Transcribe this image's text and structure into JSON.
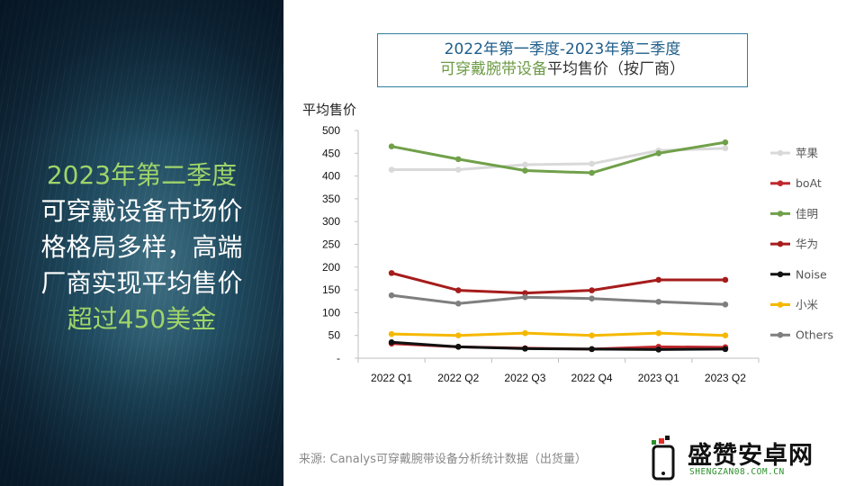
{
  "headline": {
    "line1": "2023年第二季度",
    "line2": "可穿戴设备市场价",
    "line3": "格格局多样，高端",
    "line4": "厂商实现平均售价",
    "line5": "超过450美金"
  },
  "source": "来源: Canalys可穿戴腕带设备分析统计数据（出货量）",
  "watermark": {
    "name": "盛赞安卓网",
    "url": "SHENGZAN08.COM.CN"
  },
  "colors": {
    "panel_dark": "#10293a",
    "headline_green": "#9fd46a",
    "title_blue": "#1f5e8a",
    "title_green": "#6d9b45",
    "title_border": "#2f7fa0"
  },
  "chart_data": {
    "type": "line",
    "title_line1": "2022年第一季度-2023年第二季度",
    "title_line2_green": "可穿戴腕带设备",
    "title_line2_rest": "平均售价（按厂商）",
    "ylabel": "平均售价",
    "xlabel": "",
    "categories": [
      "2022 Q1",
      "2022 Q2",
      "2022 Q3",
      "2022 Q4",
      "2023 Q1",
      "2023 Q2"
    ],
    "ylim": [
      0,
      500
    ],
    "yticks": [
      {
        "value": 0,
        "label": "-"
      },
      {
        "value": 50,
        "label": "50"
      },
      {
        "value": 100,
        "label": "100"
      },
      {
        "value": 150,
        "label": "150"
      },
      {
        "value": 200,
        "label": "200"
      },
      {
        "value": 250,
        "label": "250"
      },
      {
        "value": 300,
        "label": "300"
      },
      {
        "value": 350,
        "label": "350"
      },
      {
        "value": 400,
        "label": "400"
      },
      {
        "value": 450,
        "label": "450"
      },
      {
        "value": 500,
        "label": "500"
      }
    ],
    "grid": false,
    "legend_position": "right",
    "series": [
      {
        "name": "苹果",
        "color": "#d9d9d9",
        "values": [
          414,
          414,
          425,
          427,
          456,
          461
        ]
      },
      {
        "name": "boAt",
        "color": "#c0282d",
        "values": [
          32,
          25,
          22,
          20,
          25,
          24
        ]
      },
      {
        "name": "佳明",
        "color": "#70a04a",
        "values": [
          465,
          437,
          412,
          407,
          450,
          474
        ]
      },
      {
        "name": "华为",
        "color": "#a61c1c",
        "values": [
          187,
          149,
          143,
          149,
          172,
          172
        ]
      },
      {
        "name": "Noise",
        "color": "#111111",
        "values": [
          35,
          25,
          21,
          20,
          19,
          20
        ]
      },
      {
        "name": "小米",
        "color": "#f5b800",
        "values": [
          53,
          50,
          55,
          50,
          55,
          50
        ]
      },
      {
        "name": "Others",
        "color": "#7f7f7f",
        "values": [
          138,
          120,
          134,
          131,
          124,
          118
        ]
      }
    ]
  }
}
